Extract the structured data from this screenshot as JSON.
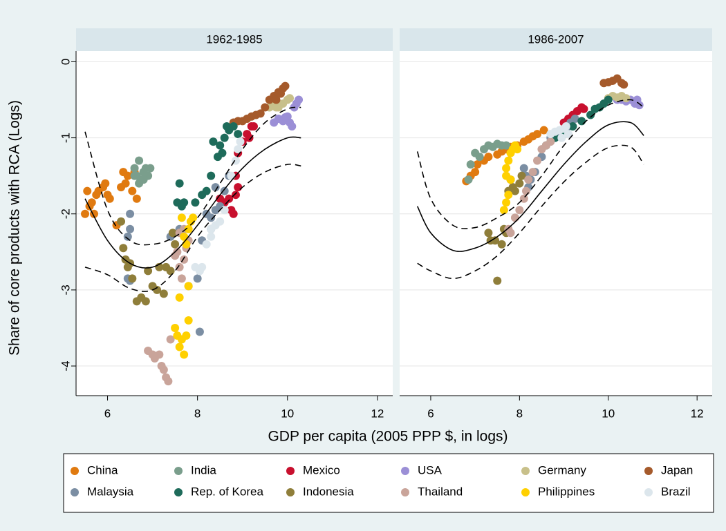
{
  "chart_data": {
    "type": "scatter",
    "ylabel": "Share of core products with RCA (Logs)",
    "xlabel": "GDP per capita (2005 PPP $, in logs)",
    "xlim": [
      5.3,
      12.34
    ],
    "xticks": [
      6,
      8,
      10,
      12
    ],
    "ylim": [
      -4.39,
      0.14
    ],
    "yticks": [
      0,
      -1,
      -2,
      -3,
      -4
    ],
    "grid": true,
    "panels": [
      {
        "title": "1962-1985",
        "fit": {
          "x": [
            5.5,
            6.0,
            6.5,
            7.0,
            7.5,
            8.0,
            8.5,
            9.0,
            9.5,
            10.0,
            10.3
          ],
          "y": [
            -1.8,
            -2.35,
            -2.65,
            -2.7,
            -2.5,
            -2.15,
            -1.75,
            -1.4,
            -1.15,
            -1.0,
            -1.0
          ],
          "upper": [
            -0.92,
            -1.95,
            -2.35,
            -2.4,
            -2.3,
            -2.05,
            -1.6,
            -1.15,
            -0.8,
            -0.62,
            -0.6
          ],
          "lower": [
            -2.7,
            -2.8,
            -2.98,
            -3.0,
            -2.75,
            -2.3,
            -1.95,
            -1.65,
            -1.45,
            -1.35,
            -1.37
          ]
        }
      },
      {
        "title": "1986-2007",
        "fit": {
          "x": [
            5.7,
            6.0,
            6.5,
            7.0,
            7.5,
            8.0,
            8.5,
            9.0,
            9.5,
            10.0,
            10.5,
            10.8
          ],
          "y": [
            -1.9,
            -2.25,
            -2.48,
            -2.45,
            -2.3,
            -2.05,
            -1.7,
            -1.35,
            -1.05,
            -0.83,
            -0.8,
            -0.97
          ],
          "upper": [
            -1.18,
            -1.8,
            -2.15,
            -2.18,
            -2.05,
            -1.85,
            -1.5,
            -1.1,
            -0.78,
            -0.57,
            -0.5,
            -0.6
          ],
          "lower": [
            -2.65,
            -2.75,
            -2.85,
            -2.75,
            -2.55,
            -2.25,
            -1.9,
            -1.58,
            -1.32,
            -1.13,
            -1.12,
            -1.35
          ]
        }
      }
    ],
    "series": [
      {
        "name": "China",
        "color": "#e07a10",
        "panels": [
          {
            "x": [
              5.5,
              5.55,
              5.6,
              5.65,
              5.7,
              5.75,
              5.8,
              5.9,
              5.95,
              6.0,
              6.05,
              6.2,
              6.3,
              6.35,
              6.4,
              6.45,
              6.55,
              6.65,
              6.6
            ],
            "y": [
              -2.0,
              -1.7,
              -1.9,
              -1.85,
              -2.0,
              -1.75,
              -1.7,
              -1.65,
              -1.6,
              -1.75,
              -1.8,
              -2.15,
              -1.65,
              -1.45,
              -1.6,
              -1.5,
              -1.7,
              -1.8,
              -1.45
            ]
          },
          {
            "x": [
              6.8,
              6.9,
              7.0,
              7.05,
              7.2,
              7.3,
              7.5,
              7.6,
              7.7,
              7.8,
              7.95,
              8.1,
              8.2,
              8.3,
              8.4,
              8.55
            ],
            "y": [
              -1.57,
              -1.5,
              -1.45,
              -1.35,
              -1.3,
              -1.25,
              -1.22,
              -1.18,
              -1.15,
              -1.12,
              -1.1,
              -1.05,
              -1.02,
              -0.98,
              -0.95,
              -0.9
            ]
          }
        ]
      },
      {
        "name": "India",
        "color": "#7a9e8c",
        "panels": [
          {
            "x": [
              6.6,
              6.65,
              6.7,
              6.75,
              6.8,
              6.85,
              6.9,
              6.95,
              6.7,
              6.8,
              6.6
            ],
            "y": [
              -1.4,
              -1.5,
              -1.3,
              -1.55,
              -1.45,
              -1.4,
              -1.5,
              -1.4,
              -1.6,
              -1.55,
              -1.5
            ]
          },
          {
            "x": [
              6.85,
              6.9,
              7.0,
              7.1,
              7.2,
              7.3,
              7.4,
              7.5,
              7.6,
              7.7
            ],
            "y": [
              -1.55,
              -1.35,
              -1.2,
              -1.25,
              -1.15,
              -1.1,
              -1.12,
              -1.08,
              -1.1,
              -1.1
            ]
          }
        ]
      },
      {
        "name": "Mexico",
        "color": "#c8102e",
        "panels": [
          {
            "x": [
              8.6,
              8.7,
              8.75,
              8.8,
              8.85,
              8.9,
              8.85,
              8.9,
              9.0,
              9.1,
              9.15,
              9.2,
              9.25,
              8.5
            ],
            "y": [
              -1.85,
              -1.8,
              -1.95,
              -2.0,
              -1.75,
              -1.65,
              -1.5,
              -1.2,
              -1.05,
              -0.95,
              -1.0,
              -0.85,
              -0.85,
              -1.8
            ]
          },
          {
            "x": [
              9.0,
              9.1,
              9.2,
              9.3,
              9.4,
              9.45
            ],
            "y": [
              -0.8,
              -0.75,
              -0.7,
              -0.65,
              -0.6,
              -0.62
            ]
          }
        ]
      },
      {
        "name": "USA",
        "color": "#9b8fd6",
        "panels": [
          {
            "x": [
              9.7,
              9.8,
              9.9,
              10.0,
              10.05,
              10.1,
              10.15,
              10.2,
              10.25,
              9.95
            ],
            "y": [
              -0.8,
              -0.75,
              -0.78,
              -0.72,
              -0.8,
              -0.85,
              -0.6,
              -0.55,
              -0.5,
              -0.73
            ]
          },
          {
            "x": [
              10.2,
              10.3,
              10.4,
              10.5,
              10.6,
              10.7,
              10.65
            ],
            "y": [
              -0.5,
              -0.5,
              -0.52,
              -0.5,
              -0.55,
              -0.57,
              -0.5
            ]
          }
        ]
      },
      {
        "name": "Germany",
        "color": "#c8c08a",
        "panels": [
          {
            "x": [
              9.6,
              9.7,
              9.8,
              9.9,
              10.0,
              10.05,
              9.75
            ],
            "y": [
              -0.6,
              -0.55,
              -0.6,
              -0.55,
              -0.5,
              -0.48,
              -0.6
            ]
          },
          {
            "x": [
              10.0,
              10.1,
              10.2,
              10.3,
              10.4
            ],
            "y": [
              -0.48,
              -0.45,
              -0.47,
              -0.45,
              -0.48
            ]
          }
        ]
      },
      {
        "name": "Japan",
        "color": "#a55a2b",
        "panels": [
          {
            "x": [
              8.8,
              8.9,
              9.0,
              9.1,
              9.2,
              9.3,
              9.4,
              9.5,
              9.6,
              9.7,
              9.8,
              9.9,
              9.95,
              9.75,
              9.85
            ],
            "y": [
              -0.8,
              -0.78,
              -0.78,
              -0.75,
              -0.72,
              -0.7,
              -0.68,
              -0.6,
              -0.5,
              -0.45,
              -0.4,
              -0.35,
              -0.32,
              -0.5,
              -0.42
            ]
          },
          {
            "x": [
              9.9,
              10.0,
              10.1,
              10.2,
              10.3,
              10.35
            ],
            "y": [
              -0.28,
              -0.27,
              -0.25,
              -0.22,
              -0.28,
              -0.3
            ]
          }
        ]
      },
      {
        "name": "Malaysia",
        "color": "#7b8ea3",
        "panels": [
          {
            "x": [
              6.45,
              6.5,
              6.45,
              6.5,
              6.5,
              7.4,
              7.6,
              7.8,
              8.0,
              8.05,
              8.1,
              8.2,
              8.3,
              8.4,
              8.5,
              8.6,
              8.4,
              8.7,
              8.3
            ],
            "y": [
              -2.85,
              -2.88,
              -2.3,
              -2.0,
              -2.2,
              -2.3,
              -2.2,
              -2.95,
              -2.85,
              -3.55,
              -2.35,
              -2.0,
              -2.05,
              -1.95,
              -1.9,
              -1.7,
              -1.65,
              -1.5,
              -2.2
            ]
          },
          {
            "x": [
              8.1,
              8.15,
              8.25,
              8.2,
              8.35,
              8.5,
              8.7,
              8.9,
              9.1,
              9.25,
              9.15
            ],
            "y": [
              -1.4,
              -1.5,
              -1.55,
              -1.65,
              -1.45,
              -1.25,
              -1.0,
              -0.95,
              -0.85,
              -0.75,
              -0.8
            ]
          }
        ]
      },
      {
        "name": "Rep. of Korea",
        "color": "#1e6b5a",
        "panels": [
          {
            "x": [
              7.6,
              7.55,
              7.7,
              7.65,
              7.95,
              8.1,
              8.2,
              8.3,
              8.35,
              8.5,
              8.55,
              8.6,
              8.7,
              8.8,
              8.9,
              8.65,
              8.45
            ],
            "y": [
              -1.6,
              -1.85,
              -1.85,
              -1.9,
              -1.85,
              -1.75,
              -1.7,
              -1.5,
              -1.05,
              -1.1,
              -1.2,
              -1.0,
              -0.9,
              -0.85,
              -0.95,
              -0.85,
              -1.25
            ]
          },
          {
            "x": [
              8.6,
              8.8,
              9.0,
              9.2,
              9.4,
              9.6,
              9.8,
              10.0,
              9.7,
              9.9
            ],
            "y": [
              -1.1,
              -1.0,
              -0.95,
              -0.85,
              -0.78,
              -0.7,
              -0.6,
              -0.5,
              -0.62,
              -0.55
            ]
          }
        ]
      },
      {
        "name": "Indonesia",
        "color": "#8f7e3a",
        "panels": [
          {
            "x": [
              6.3,
              6.35,
              6.4,
              6.45,
              6.5,
              6.55,
              6.65,
              6.75,
              6.85,
              6.9,
              7.0,
              7.1,
              7.15,
              7.25,
              7.3,
              7.4,
              7.45,
              7.5
            ],
            "y": [
              -2.1,
              -2.45,
              -2.6,
              -2.7,
              -2.65,
              -2.85,
              -3.15,
              -3.1,
              -3.15,
              -2.75,
              -2.95,
              -3.0,
              -2.7,
              -3.05,
              -2.7,
              -2.75,
              -2.25,
              -2.4
            ]
          },
          {
            "x": [
              7.3,
              7.35,
              7.45,
              7.5,
              7.6,
              7.65,
              7.7,
              7.75,
              7.8,
              7.85,
              7.9,
              8.0,
              8.05
            ],
            "y": [
              -2.25,
              -2.35,
              -2.35,
              -2.88,
              -2.4,
              -2.2,
              -2.25,
              -1.7,
              -1.55,
              -1.65,
              -1.7,
              -1.6,
              -1.5
            ]
          }
        ]
      },
      {
        "name": "Thailand",
        "color": "#c9a49a",
        "panels": [
          {
            "x": [
              6.9,
              7.0,
              7.05,
              7.15,
              7.2,
              7.25,
              7.3,
              7.35,
              7.4,
              7.5,
              7.55,
              7.6,
              7.65,
              7.7,
              7.75,
              7.8,
              7.7,
              7.6
            ],
            "y": [
              -3.8,
              -3.85,
              -3.9,
              -3.85,
              -4.0,
              -4.05,
              -4.15,
              -4.2,
              -3.65,
              -2.55,
              -2.5,
              -2.7,
              -2.85,
              -2.6,
              -2.45,
              -2.35,
              -2.2,
              -2.25
            ]
          },
          {
            "x": [
              7.75,
              7.8,
              7.9,
              8.0,
              8.1,
              8.15,
              8.2,
              8.3,
              8.4,
              8.5,
              8.6,
              8.7
            ],
            "y": [
              -2.2,
              -2.25,
              -2.05,
              -1.95,
              -1.8,
              -1.7,
              -1.55,
              -1.45,
              -1.3,
              -1.15,
              -1.1,
              -1.05
            ]
          }
        ]
      },
      {
        "name": "Philippines",
        "color": "#ffd000",
        "panels": [
          {
            "x": [
              7.5,
              7.55,
              7.6,
              7.65,
              7.7,
              7.75,
              7.8,
              7.6,
              7.8,
              7.75,
              7.8,
              7.85,
              7.9,
              7.7,
              7.65
            ],
            "y": [
              -3.5,
              -3.6,
              -3.75,
              -3.65,
              -3.85,
              -3.6,
              -3.4,
              -3.1,
              -2.95,
              -2.4,
              -2.2,
              -2.1,
              -2.05,
              -2.3,
              -2.05
            ]
          },
          {
            "x": [
              7.65,
              7.7,
              7.75,
              7.8,
              7.7,
              7.75,
              7.8,
              7.85,
              7.9,
              7.95,
              7.7
            ],
            "y": [
              -1.95,
              -1.85,
              -1.75,
              -1.55,
              -1.4,
              -1.3,
              -1.2,
              -1.15,
              -1.1,
              -1.15,
              -1.5
            ]
          }
        ]
      },
      {
        "name": "Brazil",
        "color": "#dce6ec",
        "panels": [
          {
            "x": [
              7.95,
              8.05,
              8.1,
              8.2,
              8.3,
              8.4,
              8.5,
              8.6,
              8.75,
              8.85,
              8.9,
              8.95,
              8.3
            ],
            "y": [
              -2.7,
              -2.75,
              -2.7,
              -2.4,
              -2.2,
              -2.15,
              -2.1,
              -1.95,
              -1.5,
              -1.3,
              -1.15,
              -1.05,
              -2.3
            ]
          },
          {
            "x": [
              8.7,
              8.8,
              8.9,
              9.0,
              9.1,
              8.95,
              9.05
            ],
            "y": [
              -0.95,
              -0.92,
              -0.9,
              -0.88,
              -0.95,
              -1.0,
              -0.85
            ]
          }
        ]
      }
    ]
  }
}
